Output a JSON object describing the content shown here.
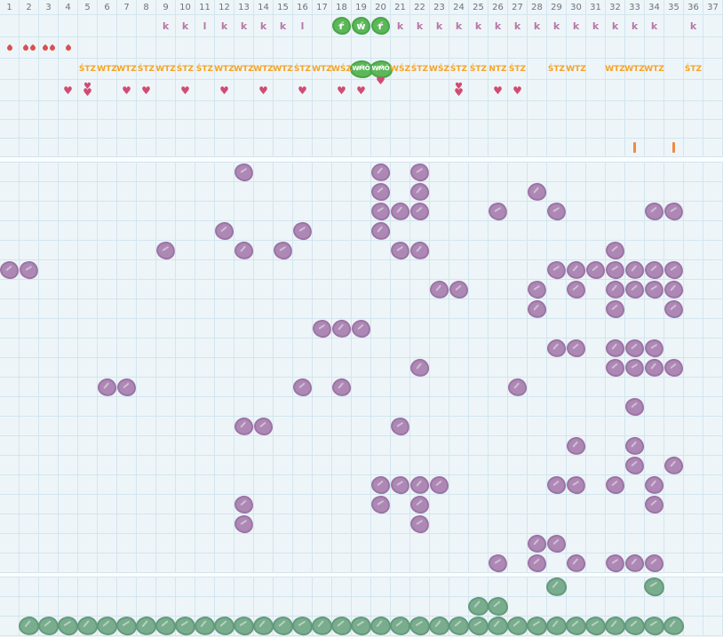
{
  "meta": {
    "grid_columns": 37,
    "main_rows": 21,
    "lower_rows": 2
  },
  "colors": {
    "background": "#eef5f8",
    "grid_line": "#d2e5ef",
    "day_number": "#68747e",
    "letter": "#b778a9",
    "tz_label": "#f4a427",
    "drop": "#d95050",
    "heart": "#d24b72",
    "bar": "#ee8a45",
    "purple_blob": "#ae88b5",
    "purple_blob_edge": "#9b74a4",
    "green_blob": "#5bb757",
    "green_blob_edge": "#48a548",
    "sage_blob": "#7aac8e",
    "sage_blob_edge": "#639a7b"
  },
  "header": {
    "day_numbers": [
      "1",
      "2",
      "3",
      "4",
      "5",
      "6",
      "7",
      "8",
      "9",
      "10",
      "11",
      "12",
      "13",
      "14",
      "15",
      "16",
      "17",
      "18",
      "19",
      "20",
      "21",
      "22",
      "23",
      "24",
      "25",
      "26",
      "27",
      "28",
      "29",
      "30",
      "31",
      "32",
      "33",
      "34",
      "35",
      "36",
      "37"
    ],
    "letters": {
      "9": "k",
      "10": "k",
      "11": "l",
      "12": "k",
      "13": "k",
      "14": "k",
      "15": "k",
      "16": "l",
      "21": "k",
      "22": "k",
      "23": "k",
      "24": "k",
      "25": "k",
      "26": "k",
      "27": "k",
      "28": "k",
      "29": "k",
      "30": "k",
      "31": "k",
      "32": "k",
      "33": "k",
      "34": "k",
      "36": "k"
    },
    "letter_blobs": {
      "18": "r",
      "19": "w",
      "20": "r"
    },
    "drops": {
      "1": 1,
      "2": 2,
      "3": 2,
      "4": 1
    },
    "tz_labels": {
      "5": "ŚTZ",
      "6": "WTZ",
      "7": "WTZ",
      "8": "ŚTZ",
      "9": "WTZ",
      "10": "ŚTZ",
      "11": "ŚTZ",
      "12": "WTZ",
      "13": "WTZ",
      "14": "WTZ",
      "15": "WTZ",
      "16": "ŚTZ",
      "17": "WTZ",
      "18": "WŚZ",
      "21": "WŚZ",
      "22": "ŚTZ",
      "23": "WŚZ",
      "24": "ŚTZ",
      "25": "ŚTZ",
      "26": "NTZ",
      "27": "ŚTZ",
      "29": "ŚTZ",
      "30": "WTZ",
      "32": "WTZ",
      "33": "WTZ",
      "34": "WTZ",
      "36": "ŚTZ"
    },
    "tz_blobs": {
      "19": "WMÓ",
      "20": "WMÓ"
    },
    "hearts": {
      "single": [
        4,
        7,
        8,
        10,
        12,
        14,
        16,
        18,
        19,
        26,
        27
      ],
      "double": [
        5,
        24
      ],
      "raised": [
        20
      ]
    },
    "bars": [
      33,
      35
    ]
  },
  "main_grid": {
    "rows": [
      [
        13,
        20,
        22
      ],
      [
        20,
        22,
        28
      ],
      [
        20,
        21,
        22,
        26,
        29,
        34,
        35
      ],
      [
        12,
        16,
        20
      ],
      [
        9,
        13,
        15,
        21,
        22,
        32
      ],
      [
        1,
        2,
        29,
        30,
        31,
        32,
        33,
        34,
        35
      ],
      [
        23,
        24,
        28,
        30,
        32,
        33,
        34,
        35
      ],
      [
        28,
        32,
        35
      ],
      [
        17,
        18,
        19
      ],
      [
        29,
        30,
        32,
        33,
        34
      ],
      [
        22,
        32,
        33,
        34,
        35
      ],
      [
        6,
        7,
        16,
        18,
        27
      ],
      [
        33
      ],
      [
        13,
        14,
        21
      ],
      [
        30,
        33
      ],
      [
        33,
        35
      ],
      [
        20,
        21,
        22,
        23,
        29,
        30,
        32,
        34
      ],
      [
        13,
        20,
        22,
        34
      ],
      [
        13,
        22
      ],
      [
        28,
        29
      ],
      [
        26,
        28,
        30,
        32,
        33,
        34
      ]
    ]
  },
  "lower_grid": {
    "rows": [
      [
        29,
        34
      ],
      [
        25,
        26
      ]
    ]
  },
  "bottom_row": {
    "from": 2,
    "to": 35
  }
}
